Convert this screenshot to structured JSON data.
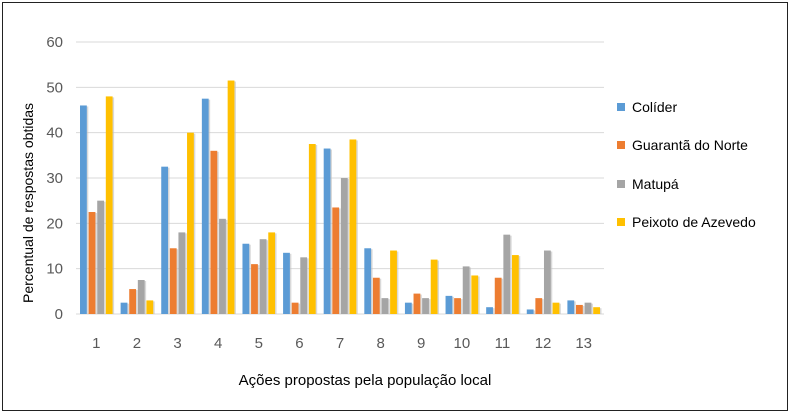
{
  "chart_data": {
    "type": "bar",
    "title": "",
    "xlabel": "Ações propostas pela população local",
    "ylabel": "Percentual de respostas obtidas",
    "ylim": [
      0,
      60
    ],
    "yticks": [
      0,
      10,
      20,
      30,
      40,
      50,
      60
    ],
    "grid": true,
    "legend_position": "right",
    "categories": [
      "1",
      "2",
      "3",
      "4",
      "5",
      "6",
      "7",
      "8",
      "9",
      "10",
      "11",
      "12",
      "13"
    ],
    "series": [
      {
        "name": "Colíder",
        "color": "#5b9bd5",
        "values": [
          46,
          2.5,
          32.5,
          47.5,
          15.5,
          13.5,
          36.5,
          14.5,
          2.5,
          4,
          1.5,
          1,
          3
        ]
      },
      {
        "name": "Guarantã do Norte",
        "color": "#ed7d31",
        "values": [
          22.5,
          5.5,
          14.5,
          36,
          11,
          2.5,
          23.5,
          8,
          4.5,
          3.5,
          8,
          3.5,
          2
        ]
      },
      {
        "name": "Matupá",
        "color": "#a5a5a5",
        "values": [
          25,
          7.5,
          18,
          21,
          16.5,
          12.5,
          30,
          3.5,
          3.5,
          10.5,
          17.5,
          14,
          2.5
        ]
      },
      {
        "name": "Peixoto de Azevedo",
        "color": "#ffc000",
        "values": [
          48,
          3,
          40,
          51.5,
          18,
          37.5,
          38.5,
          14,
          12,
          8.5,
          13,
          2.5,
          1.5
        ]
      }
    ]
  }
}
